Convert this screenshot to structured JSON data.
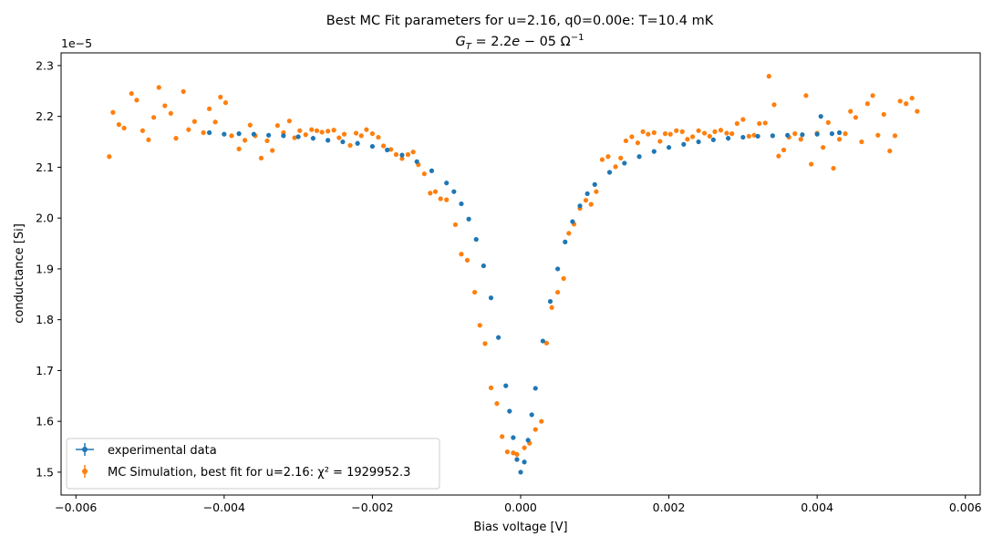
{
  "chart_data": {
    "type": "scatter",
    "title": "Best MC Fit parameters for u=2.16, q0=0.00e:  T=10.4 mK",
    "subtitle": "G_T = 2.2e − 05 Ω^−1",
    "xlabel": "Bias voltage [V]",
    "ylabel": "conductance [Si]",
    "y_offset_text": "1e−5",
    "y_scale": 1e-05,
    "xlim": [
      -0.0062,
      0.0062
    ],
    "ylim": [
      1.455,
      2.325
    ],
    "x_ticks": [
      -0.006,
      -0.004,
      -0.002,
      0.0,
      0.002,
      0.004,
      0.006
    ],
    "x_tick_labels": [
      "−0.006",
      "−0.004",
      "−0.002",
      "0.000",
      "0.002",
      "0.004",
      "0.006"
    ],
    "y_ticks": [
      1.5,
      1.6,
      1.7,
      1.8,
      1.9,
      2.0,
      2.1,
      2.2,
      2.3
    ],
    "y_tick_labels": [
      "1.5",
      "1.6",
      "1.7",
      "1.8",
      "1.9",
      "2.0",
      "2.1",
      "2.2",
      "2.3"
    ],
    "grid": false,
    "legend_position": "lower-left",
    "colors": {
      "experimental": "#1f77b4",
      "simulation": "#ff7f0e"
    },
    "series": [
      {
        "name": "experimental data",
        "style": "errorbar-points",
        "points": [
          [
            -0.0042,
            2.168
          ],
          [
            -0.004,
            2.165
          ],
          [
            -0.0038,
            2.166
          ],
          [
            -0.0036,
            2.165
          ],
          [
            -0.0034,
            2.163
          ],
          [
            -0.0032,
            2.162
          ],
          [
            -0.003,
            2.16
          ],
          [
            -0.0028,
            2.157
          ],
          [
            -0.0026,
            2.153
          ],
          [
            -0.0024,
            2.15
          ],
          [
            -0.0022,
            2.147
          ],
          [
            -0.002,
            2.141
          ],
          [
            -0.0018,
            2.134
          ],
          [
            -0.0016,
            2.124
          ],
          [
            -0.0014,
            2.111
          ],
          [
            -0.0012,
            2.093
          ],
          [
            -0.001,
            2.069
          ],
          [
            -0.0009,
            2.052
          ],
          [
            -0.0008,
            2.028
          ],
          [
            -0.0007,
            1.998
          ],
          [
            -0.0006,
            1.958
          ],
          [
            -0.0005,
            1.906
          ],
          [
            -0.0004,
            1.843
          ],
          [
            -0.0003,
            1.765
          ],
          [
            -0.0002,
            1.67
          ],
          [
            -0.00015,
            1.62
          ],
          [
            -0.0001,
            1.568
          ],
          [
            -5e-05,
            1.525
          ],
          [
            0.0,
            1.5
          ],
          [
            5e-05,
            1.52
          ],
          [
            0.0001,
            1.563
          ],
          [
            0.00015,
            1.613
          ],
          [
            0.0002,
            1.665
          ],
          [
            0.0003,
            1.758
          ],
          [
            0.0004,
            1.836
          ],
          [
            0.0005,
            1.9
          ],
          [
            0.0006,
            1.953
          ],
          [
            0.0007,
            1.993
          ],
          [
            0.0008,
            2.024
          ],
          [
            0.0009,
            2.048
          ],
          [
            0.001,
            2.066
          ],
          [
            0.0012,
            2.09
          ],
          [
            0.0014,
            2.108
          ],
          [
            0.0016,
            2.121
          ],
          [
            0.0018,
            2.131
          ],
          [
            0.002,
            2.139
          ],
          [
            0.0022,
            2.145
          ],
          [
            0.0024,
            2.15
          ],
          [
            0.0026,
            2.154
          ],
          [
            0.0028,
            2.157
          ],
          [
            0.003,
            2.159
          ],
          [
            0.0032,
            2.161
          ],
          [
            0.0034,
            2.162
          ],
          [
            0.0036,
            2.163
          ],
          [
            0.0038,
            2.164
          ],
          [
            0.004,
            2.165
          ],
          [
            0.00405,
            2.2
          ],
          [
            0.0042,
            2.166
          ],
          [
            0.0043,
            2.168
          ]
        ]
      },
      {
        "name": "MC Simulation, best fit for u=2.16:  χ² = 1929952.3",
        "style": "errorbar-points",
        "points": [
          [
            -0.00555,
            2.121
          ],
          [
            -0.0055,
            2.208
          ],
          [
            -0.00542,
            2.184
          ],
          [
            -0.00535,
            2.177
          ],
          [
            -0.00525,
            2.245
          ],
          [
            -0.00518,
            2.232
          ],
          [
            -0.0051,
            2.172
          ],
          [
            -0.00502,
            2.154
          ],
          [
            -0.00495,
            2.198
          ],
          [
            -0.00488,
            2.257
          ],
          [
            -0.0048,
            2.221
          ],
          [
            -0.00472,
            2.206
          ],
          [
            -0.00465,
            2.157
          ],
          [
            -0.00455,
            2.249
          ],
          [
            -0.00448,
            2.174
          ],
          [
            -0.0044,
            2.19
          ],
          [
            -0.00428,
            2.168
          ],
          [
            -0.0042,
            2.215
          ],
          [
            -0.00412,
            2.189
          ],
          [
            -0.00405,
            2.238
          ],
          [
            -0.00398,
            2.227
          ],
          [
            -0.0039,
            2.162
          ],
          [
            -0.0038,
            2.136
          ],
          [
            -0.00372,
            2.153
          ],
          [
            -0.00365,
            2.183
          ],
          [
            -0.00358,
            2.162
          ],
          [
            -0.0035,
            2.118
          ],
          [
            -0.00342,
            2.152
          ],
          [
            -0.00335,
            2.133
          ],
          [
            -0.00328,
            2.182
          ],
          [
            -0.0032,
            2.168
          ],
          [
            -0.00312,
            2.191
          ],
          [
            -0.00305,
            2.158
          ],
          [
            -0.00298,
            2.172
          ],
          [
            -0.0029,
            2.164
          ],
          [
            -0.00282,
            2.174
          ],
          [
            -0.00275,
            2.172
          ],
          [
            -0.00268,
            2.169
          ],
          [
            -0.0026,
            2.171
          ],
          [
            -0.00252,
            2.173
          ],
          [
            -0.00245,
            2.158
          ],
          [
            -0.00238,
            2.165
          ],
          [
            -0.0023,
            2.143
          ],
          [
            -0.00222,
            2.167
          ],
          [
            -0.00215,
            2.162
          ],
          [
            -0.00208,
            2.174
          ],
          [
            -0.002,
            2.166
          ],
          [
            -0.00192,
            2.159
          ],
          [
            -0.00185,
            2.142
          ],
          [
            -0.00175,
            2.135
          ],
          [
            -0.00168,
            2.125
          ],
          [
            -0.0016,
            2.117
          ],
          [
            -0.00152,
            2.125
          ],
          [
            -0.00145,
            2.13
          ],
          [
            -0.00138,
            2.105
          ],
          [
            -0.0013,
            2.087
          ],
          [
            -0.00122,
            2.049
          ],
          [
            -0.00115,
            2.052
          ],
          [
            -0.00108,
            2.038
          ],
          [
            -0.001,
            2.036
          ],
          [
            -0.00088,
            1.987
          ],
          [
            -0.0008,
            1.929
          ],
          [
            -0.00072,
            1.917
          ],
          [
            -0.00062,
            1.854
          ],
          [
            -0.00055,
            1.789
          ],
          [
            -0.00048,
            1.753
          ],
          [
            -0.0004,
            1.666
          ],
          [
            -0.00032,
            1.635
          ],
          [
            -0.00025,
            1.57
          ],
          [
            -0.00018,
            1.54
          ],
          [
            -0.0001,
            1.538
          ],
          [
            -5e-05,
            1.535
          ],
          [
            5e-05,
            1.548
          ],
          [
            0.00012,
            1.557
          ],
          [
            0.0002,
            1.584
          ],
          [
            0.00028,
            1.6
          ],
          [
            0.00035,
            1.754
          ],
          [
            0.00042,
            1.824
          ],
          [
            0.0005,
            1.854
          ],
          [
            0.00058,
            1.881
          ],
          [
            0.00065,
            1.97
          ],
          [
            0.00072,
            1.988
          ],
          [
            0.0008,
            2.019
          ],
          [
            0.00088,
            2.035
          ],
          [
            0.00095,
            2.027
          ],
          [
            0.00102,
            2.052
          ],
          [
            0.0011,
            2.115
          ],
          [
            0.00118,
            2.121
          ],
          [
            0.00128,
            2.101
          ],
          [
            0.00135,
            2.118
          ],
          [
            0.00142,
            2.152
          ],
          [
            0.0015,
            2.16
          ],
          [
            0.00158,
            2.148
          ],
          [
            0.00165,
            2.17
          ],
          [
            0.00172,
            2.165
          ],
          [
            0.0018,
            2.168
          ],
          [
            0.00188,
            2.151
          ],
          [
            0.00195,
            2.166
          ],
          [
            0.00202,
            2.165
          ],
          [
            0.0021,
            2.172
          ],
          [
            0.00218,
            2.17
          ],
          [
            0.00225,
            2.155
          ],
          [
            0.00232,
            2.16
          ],
          [
            0.0024,
            2.172
          ],
          [
            0.00248,
            2.167
          ],
          [
            0.00255,
            2.161
          ],
          [
            0.00262,
            2.17
          ],
          [
            0.0027,
            2.173
          ],
          [
            0.00278,
            2.167
          ],
          [
            0.00285,
            2.166
          ],
          [
            0.00292,
            2.186
          ],
          [
            0.003,
            2.194
          ],
          [
            0.00308,
            2.161
          ],
          [
            0.00315,
            2.163
          ],
          [
            0.00322,
            2.186
          ],
          [
            0.0033,
            2.187
          ],
          [
            0.00335,
            2.279
          ],
          [
            0.00342,
            2.223
          ],
          [
            0.00348,
            2.122
          ],
          [
            0.00355,
            2.134
          ],
          [
            0.00362,
            2.159
          ],
          [
            0.0037,
            2.166
          ],
          [
            0.00378,
            2.155
          ],
          [
            0.00385,
            2.241
          ],
          [
            0.00392,
            2.106
          ],
          [
            0.004,
            2.167
          ],
          [
            0.00408,
            2.139
          ],
          [
            0.00415,
            2.188
          ],
          [
            0.00422,
            2.098
          ],
          [
            0.0043,
            2.155
          ],
          [
            0.00438,
            2.166
          ],
          [
            0.00445,
            2.21
          ],
          [
            0.00452,
            2.198
          ],
          [
            0.0046,
            2.15
          ],
          [
            0.00468,
            2.225
          ],
          [
            0.00475,
            2.241
          ],
          [
            0.00482,
            2.163
          ],
          [
            0.0049,
            2.204
          ],
          [
            0.00498,
            2.132
          ],
          [
            0.00505,
            2.162
          ],
          [
            0.00512,
            2.23
          ],
          [
            0.0052,
            2.225
          ],
          [
            0.00528,
            2.236
          ],
          [
            0.00535,
            2.21
          ]
        ]
      }
    ]
  }
}
